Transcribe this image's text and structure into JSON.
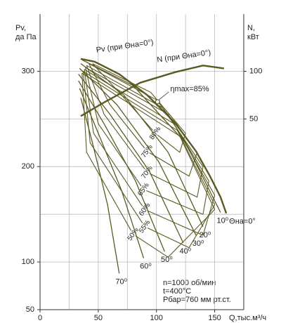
{
  "chart_data": {
    "type": "line",
    "ylabel": [
      "Pv,",
      "да Па"
    ],
    "y2label": [
      "N,",
      "кВт"
    ],
    "xlabel": "Q,тыс.м³/ч",
    "xlim": [
      0,
      175
    ],
    "xticks": [
      0,
      50,
      100,
      150
    ],
    "ylim": [
      50,
      360
    ],
    "yticks": [
      50,
      100,
      200,
      300
    ],
    "y2lim": [
      -150,
      160
    ],
    "y2ticks": [
      50,
      100
    ],
    "xgrid": [
      25,
      50,
      75,
      100,
      125,
      150
    ],
    "ygrid": [
      100,
      150,
      200,
      250,
      300
    ],
    "color": "#5b5a21",
    "series": [
      {
        "name": "Pv (при Θна=0°)",
        "x": [
          35,
          47,
          68,
          92,
          116,
          134,
          146,
          155,
          160
        ],
        "values": [
          313,
          310,
          297,
          275,
          246,
          216,
          190,
          168,
          151
        ]
      },
      {
        "name": "N (при Θна=0°)",
        "axis": "y2",
        "x": [
          35,
          56,
          86,
          116,
          140,
          158
        ],
        "values": [
          53,
          68,
          88,
          99,
          106,
          103
        ]
      }
    ],
    "vane_curves": [
      {
        "name": "10⁰",
        "x": [
          36,
          80,
          125,
          155
        ],
        "values": [
          312,
          285,
          225,
          152
        ]
      },
      {
        "name": "20⁰",
        "x": [
          35,
          72,
          110,
          140
        ],
        "values": [
          308,
          275,
          215,
          137
        ]
      },
      {
        "name": "30⁰",
        "x": [
          34,
          66,
          102,
          134
        ],
        "values": [
          303,
          265,
          205,
          128
        ]
      },
      {
        "name": "40⁰",
        "x": [
          33,
          60,
          94,
          123
        ],
        "values": [
          297,
          255,
          195,
          120
        ]
      },
      {
        "name": "50⁰",
        "x": [
          33,
          55,
          82,
          107
        ],
        "values": [
          290,
          245,
          185,
          111
        ]
      },
      {
        "name": "60⁰",
        "x": [
          34,
          50,
          70,
          89
        ],
        "values": [
          282,
          235,
          175,
          104
        ]
      },
      {
        "name": "70⁰",
        "x": [
          35,
          45,
          58,
          68
        ],
        "values": [
          272,
          225,
          160,
          88
        ]
      }
    ],
    "efficiency_curves": [
      {
        "name": "80%",
        "x": [
          45,
          95,
          125,
          120,
          99,
          70,
          45
        ],
        "values": [
          308,
          278,
          235,
          215,
          235,
          275,
          308
        ]
      },
      {
        "name": "75%",
        "x": [
          42,
          100,
          135,
          128,
          92,
          60,
          42
        ],
        "values": [
          308,
          270,
          215,
          190,
          216,
          265,
          308
        ]
      },
      {
        "name": "70%",
        "x": [
          40,
          105,
          140,
          135,
          92,
          55,
          40
        ],
        "values": [
          306,
          262,
          200,
          168,
          194,
          255,
          306
        ]
      },
      {
        "name": "65%",
        "x": [
          39,
          110,
          145,
          140,
          89,
          50,
          39
        ],
        "values": [
          304,
          255,
          185,
          150,
          176,
          245,
          304
        ]
      },
      {
        "name": "60%",
        "x": [
          38,
          115,
          150,
          140,
          90,
          46,
          38
        ],
        "values": [
          302,
          245,
          170,
          128,
          155,
          235,
          302
        ]
      },
      {
        "name": "55%",
        "x": [
          37,
          118,
          150,
          128,
          90,
          43,
          37
        ],
        "values": [
          300,
          238,
          160,
          115,
          137,
          225,
          300
        ]
      },
      {
        "name": "50%",
        "x": [
          36,
          120,
          150,
          110,
          80,
          40,
          36
        ],
        "values": [
          298,
          232,
          155,
          105,
          129,
          215,
          298
        ]
      }
    ],
    "eta_max": {
      "label": "ηmax=85%",
      "x": 101,
      "value": 268
    },
    "zero_label": "Θна=0°",
    "notes": [
      "n=1000 об/мин",
      "t=400°C",
      "Pбар=760 мм рт.ст."
    ]
  }
}
